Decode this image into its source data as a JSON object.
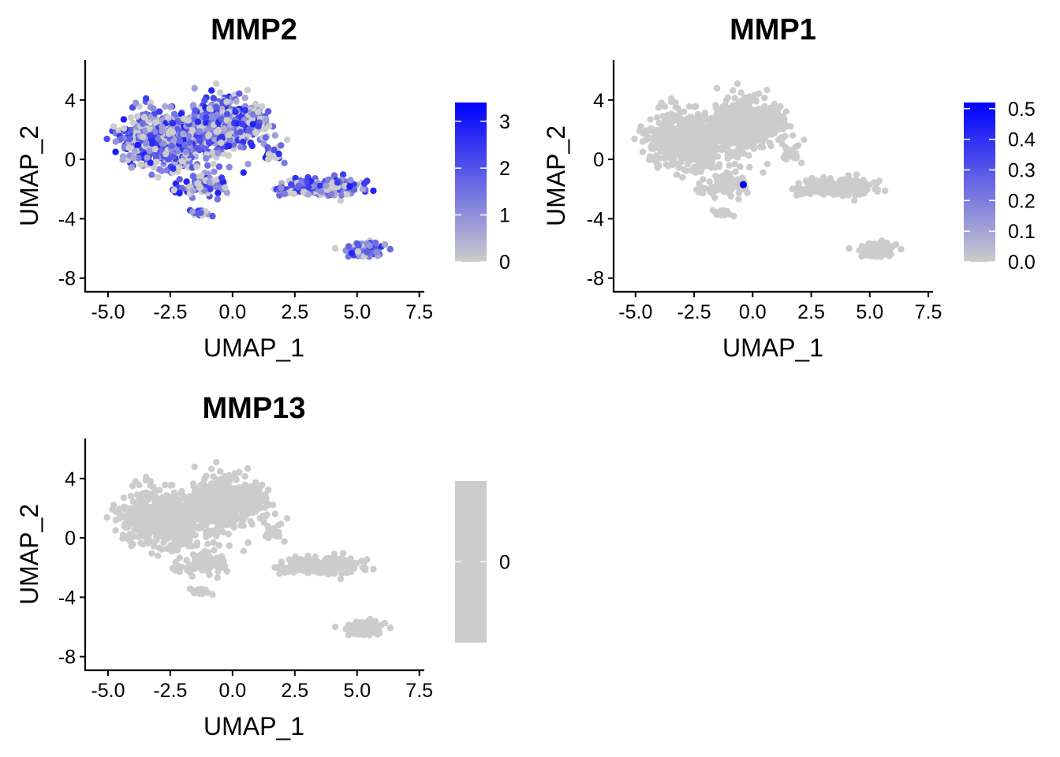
{
  "chart_data": [
    {
      "type": "scatter",
      "title": "MMP2",
      "xlabel": "UMAP_1",
      "ylabel": "UMAP_2",
      "xlim": [
        -5.6,
        7.7
      ],
      "ylim": [
        -8.6,
        6.7
      ],
      "x_ticks": [
        "-5.0",
        "-2.5",
        "0.0",
        "2.5",
        "5.0",
        "7.5"
      ],
      "y_ticks": [
        "4",
        "0",
        "-4",
        "-8"
      ],
      "legend": {
        "position": "right",
        "low_color": "#cccccc",
        "high_color": "#0000ff",
        "range": [
          0,
          3.4
        ],
        "ticks": [
          "3",
          "2",
          "1",
          "0"
        ]
      },
      "expression_level": "high"
    },
    {
      "type": "scatter",
      "title": "MMP1",
      "xlabel": "UMAP_1",
      "ylabel": "UMAP_2",
      "xlim": [
        -5.6,
        7.7
      ],
      "ylim": [
        -8.6,
        6.7
      ],
      "x_ticks": [
        "-5.0",
        "-2.5",
        "0.0",
        "2.5",
        "5.0",
        "7.5"
      ],
      "y_ticks": [
        "4",
        "0",
        "-4",
        "-8"
      ],
      "legend": {
        "position": "right",
        "low_color": "#cccccc",
        "high_color": "#0000ff",
        "range": [
          0,
          0.52
        ],
        "ticks": [
          "0.5",
          "0.4",
          "0.3",
          "0.2",
          "0.1",
          "0.0"
        ]
      },
      "expression_level": "none",
      "highlighted_points": [
        {
          "x": -0.4,
          "y": -1.7
        }
      ]
    },
    {
      "type": "scatter",
      "title": "MMP13",
      "xlabel": "UMAP_1",
      "ylabel": "UMAP_2",
      "xlim": [
        -5.6,
        7.7
      ],
      "ylim": [
        -8.6,
        6.7
      ],
      "x_ticks": [
        "-5.0",
        "-2.5",
        "0.0",
        "2.5",
        "5.0",
        "7.5"
      ],
      "y_ticks": [
        "4",
        "0",
        "-4",
        "-8"
      ],
      "legend": {
        "position": "right",
        "low_color": "#cccccc",
        "high_color": "#cccccc",
        "range": [
          0,
          0
        ],
        "ticks": [
          "0"
        ]
      },
      "expression_level": "none"
    }
  ],
  "clusters": [
    {
      "cx": -2.8,
      "cy": 1.3,
      "sx": 1.3,
      "sy": 1.6,
      "n": 560
    },
    {
      "cx": -0.5,
      "cy": 2.3,
      "sx": 1.1,
      "sy": 1.5,
      "n": 380
    },
    {
      "cx": 0.6,
      "cy": 2.5,
      "sx": 0.7,
      "sy": 1.2,
      "n": 100
    },
    {
      "cx": -1.2,
      "cy": -1.6,
      "sx": 1.1,
      "sy": 0.8,
      "n": 70
    },
    {
      "cx": -1.3,
      "cy": -3.6,
      "sx": 0.35,
      "sy": 0.25,
      "n": 18
    },
    {
      "cx": 1.6,
      "cy": 0.5,
      "sx": 0.5,
      "sy": 0.6,
      "n": 22
    },
    {
      "cx": 3.5,
      "cy": -1.9,
      "sx": 1.3,
      "sy": 0.45,
      "n": 220
    },
    {
      "cx": 5.3,
      "cy": -6.1,
      "sx": 0.55,
      "sy": 0.45,
      "n": 130
    }
  ]
}
